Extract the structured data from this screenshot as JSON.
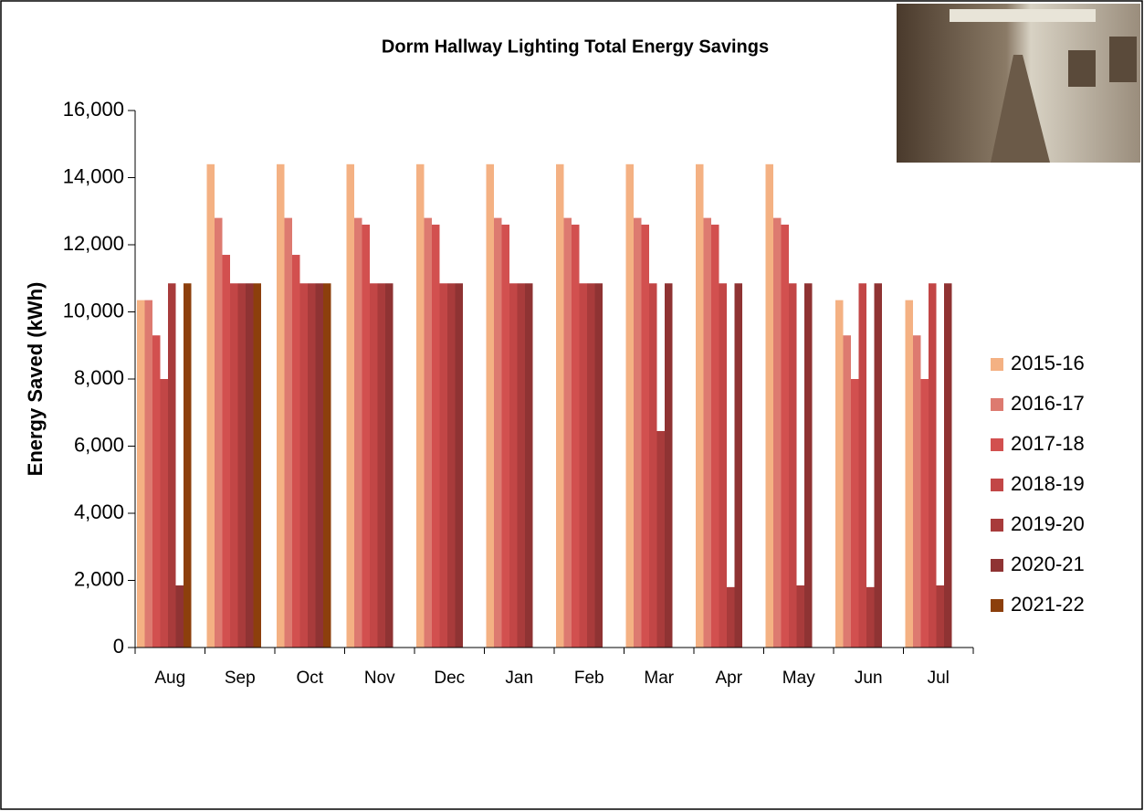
{
  "chart_data": {
    "type": "bar",
    "title": "Dorm Hallway Lighting Total Energy Savings",
    "ylabel": "Energy Saved (kWh)",
    "categories": [
      "Aug",
      "Sep",
      "Oct",
      "Nov",
      "Dec",
      "Jan",
      "Feb",
      "Mar",
      "Apr",
      "May",
      "Jun",
      "Jul"
    ],
    "series": [
      {
        "name": "2015-16",
        "color": "#f4b183",
        "values": [
          10350,
          14400,
          14400,
          14400,
          14400,
          14400,
          14400,
          14400,
          14400,
          14400,
          10350,
          10350
        ]
      },
      {
        "name": "2016-17",
        "color": "#dd7a70",
        "values": [
          10350,
          12800,
          12800,
          12800,
          12800,
          12800,
          12800,
          12800,
          12800,
          12800,
          9300,
          9300
        ]
      },
      {
        "name": "2017-18",
        "color": "#d2504f",
        "values": [
          9300,
          11700,
          11700,
          12600,
          12600,
          12600,
          12600,
          12600,
          12600,
          12600,
          8000,
          8000
        ]
      },
      {
        "name": "2018-19",
        "color": "#c24646",
        "values": [
          8000,
          10850,
          10850,
          10850,
          10850,
          10850,
          10850,
          10850,
          10850,
          10850,
          10850,
          10850
        ]
      },
      {
        "name": "2019-20",
        "color": "#a83b3b",
        "values": [
          10850,
          10850,
          10850,
          10850,
          10850,
          10850,
          10850,
          6450,
          1800,
          1850,
          1800,
          1850
        ]
      },
      {
        "name": "2020-21",
        "color": "#8f3333",
        "values": [
          1850,
          10850,
          10850,
          10850,
          10850,
          10850,
          10850,
          10850,
          10850,
          10850,
          10850,
          10850
        ]
      },
      {
        "name": "2021-22",
        "color": "#8c3f0c",
        "values": [
          10850,
          10850,
          10850,
          null,
          null,
          null,
          null,
          null,
          null,
          null,
          null,
          null
        ]
      }
    ],
    "ylim": [
      0,
      16000
    ],
    "yticks": [
      0,
      {
        "value": 2000,
        "label": "2,000"
      },
      {
        "value": 4000,
        "label": "4,000"
      },
      {
        "value": 6000,
        "label": "6,000"
      },
      {
        "value": 8000,
        "label": "8,000"
      },
      {
        "value": 10000,
        "label": "10,000"
      },
      {
        "value": 12000,
        "label": "12,000"
      },
      {
        "value": 14000,
        "label": "14,000"
      },
      {
        "value": 16000,
        "label": "16,000"
      }
    ],
    "grid": false,
    "legend": "right"
  }
}
